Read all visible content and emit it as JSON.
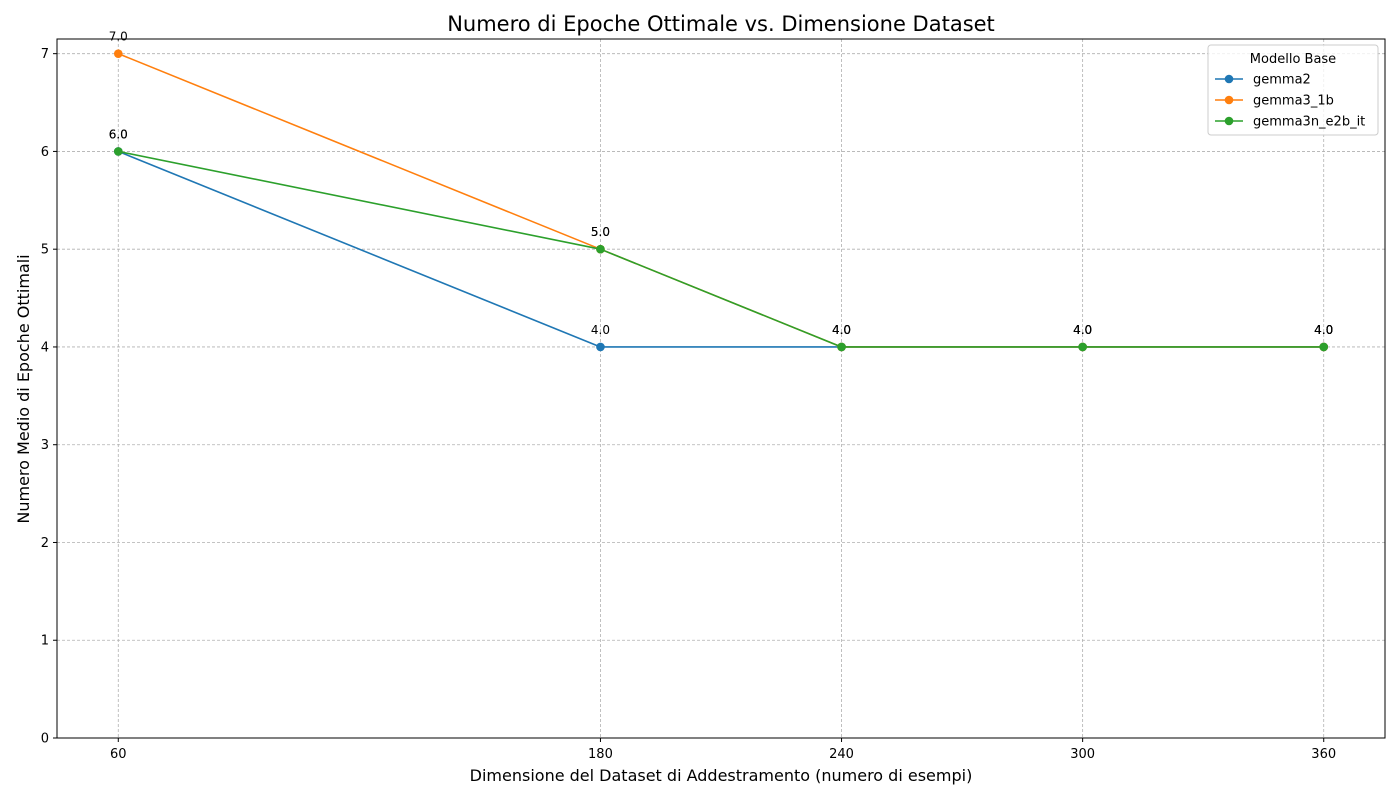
{
  "chart_data": {
    "type": "line",
    "title": "Numero di Epoche Ottimale vs. Dimensione Dataset",
    "xlabel": "Dimensione del Dataset di Addestramento (numero di esempi)",
    "ylabel": "Numero Medio di Epoche Ottimali",
    "x": [
      60,
      180,
      240,
      300,
      360
    ],
    "x_tick_labels": [
      "60",
      "180",
      "240",
      "300",
      "360"
    ],
    "xlim": [
      44.75,
      375.25
    ],
    "ylim": [
      0,
      7.15
    ],
    "y_ticks": [
      0,
      1,
      2,
      3,
      4,
      5,
      6,
      7
    ],
    "y_tick_labels": [
      "0",
      "1",
      "2",
      "3",
      "4",
      "5",
      "6",
      "7"
    ],
    "grid": true,
    "legend": {
      "title": "Modello Base",
      "placement": "top-right"
    },
    "series": [
      {
        "name": "gemma2",
        "color": "#1f77b4",
        "values": [
          6,
          4,
          4,
          4,
          4
        ],
        "labels": [
          "6.0",
          "4.0",
          "4.0",
          "4.0",
          "4.0"
        ]
      },
      {
        "name": "gemma3_1b",
        "color": "#ff7f0e",
        "values": [
          7,
          5,
          4,
          4,
          4
        ],
        "labels": [
          "7.0",
          "5.0",
          "4.0",
          "4.0",
          "4.0"
        ]
      },
      {
        "name": "gemma3n_e2b_it",
        "color": "#2ca02c",
        "values": [
          6,
          5,
          4,
          4,
          4
        ],
        "labels": [
          "6.0",
          "5.0",
          "4.0",
          "4.0",
          "4.0"
        ]
      }
    ]
  }
}
